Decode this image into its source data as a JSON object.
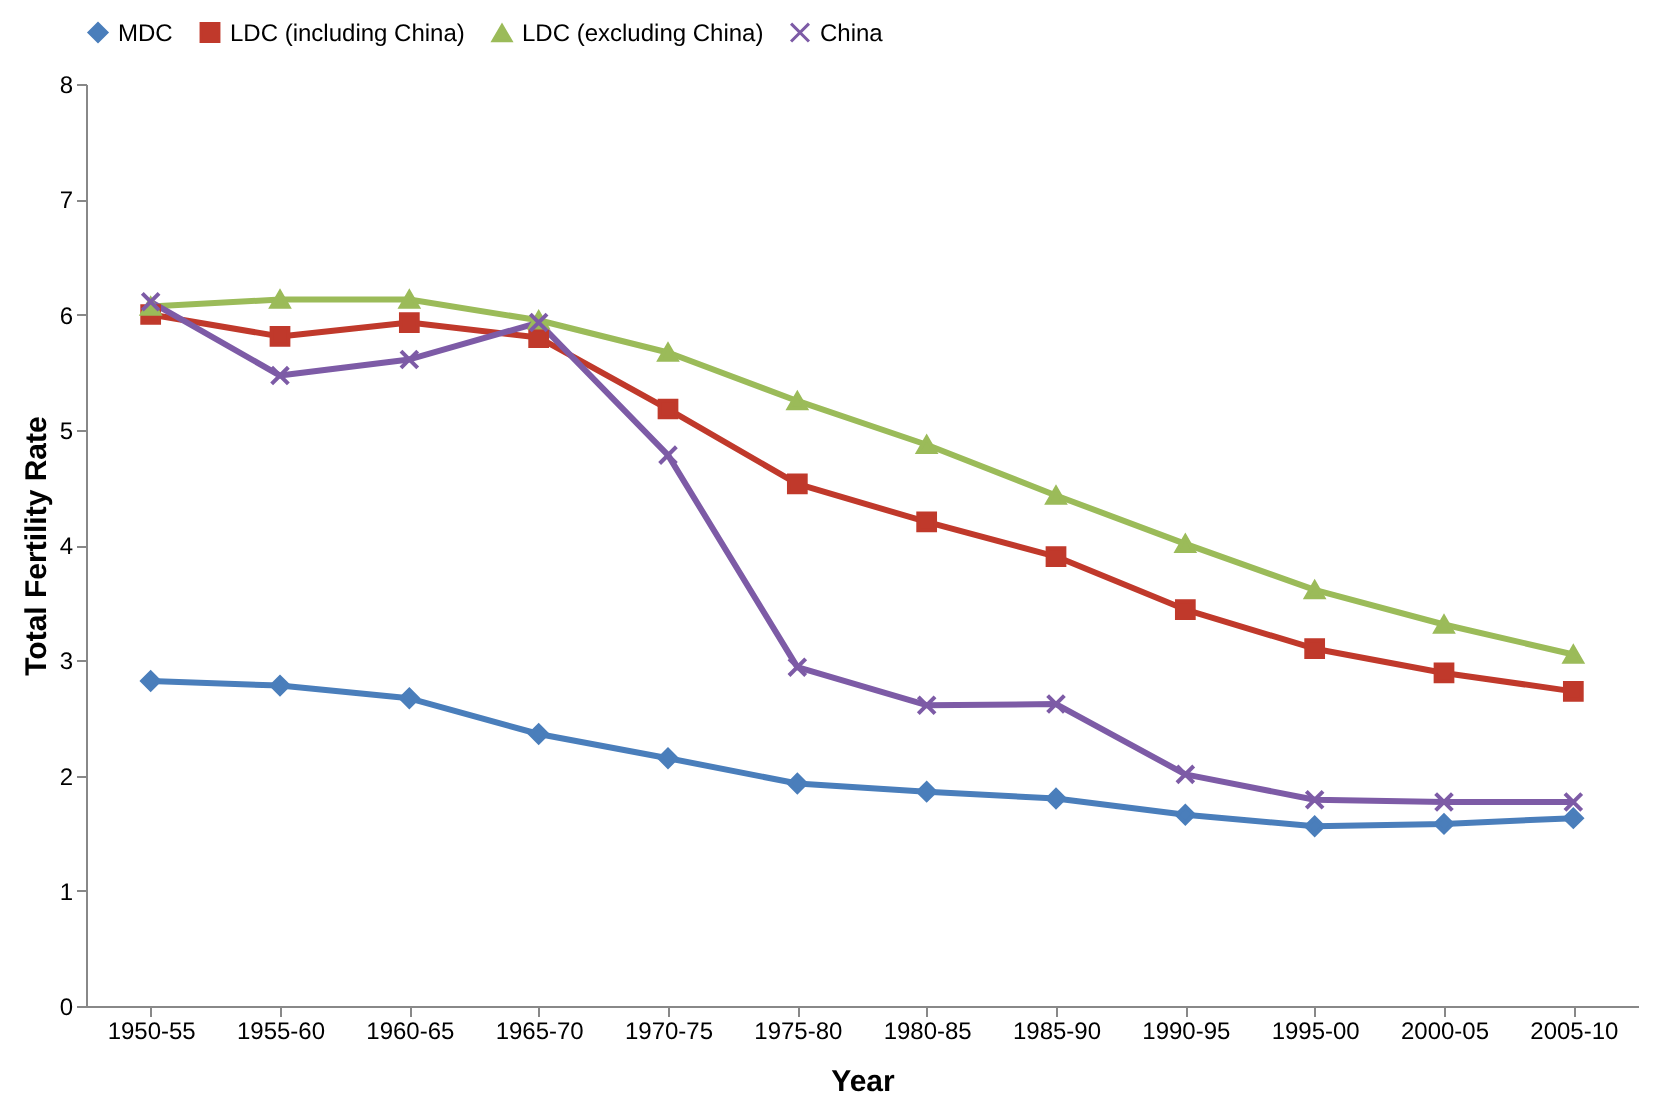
{
  "chart_data": {
    "type": "line",
    "xlabel": "Year",
    "ylabel": "Total Fertility Rate",
    "categories": [
      "1950-55",
      "1955-60",
      "1960-65",
      "1965-70",
      "1970-75",
      "1975-80",
      "1980-85",
      "1985-90",
      "1990-95",
      "1995-00",
      "2000-05",
      "2005-10"
    ],
    "series": [
      {
        "name": "MDC",
        "color": "#4a7ebb",
        "marker": "diamond",
        "values": [
          2.82,
          2.78,
          2.67,
          2.36,
          2.15,
          1.93,
          1.86,
          1.8,
          1.66,
          1.56,
          1.58,
          1.63
        ]
      },
      {
        "name": "LDC (including China)",
        "color": "#c0392b",
        "marker": "square",
        "values": [
          6.0,
          5.81,
          5.93,
          5.8,
          5.18,
          4.53,
          4.2,
          3.9,
          3.44,
          3.1,
          2.89,
          2.73
        ]
      },
      {
        "name": "LDC (excluding China)",
        "color": "#9bbb59",
        "marker": "triangle",
        "values": [
          6.07,
          6.13,
          6.13,
          5.95,
          5.67,
          5.25,
          4.87,
          4.43,
          4.01,
          3.61,
          3.31,
          3.05
        ]
      },
      {
        "name": "China",
        "color": "#7d5ba6",
        "marker": "cross",
        "values": [
          6.11,
          5.47,
          5.61,
          5.93,
          4.78,
          2.94,
          2.61,
          2.62,
          2.01,
          1.79,
          1.77,
          1.77
        ]
      }
    ],
    "ylim": [
      0,
      8
    ],
    "yticks": [
      0,
      1,
      2,
      3,
      4,
      5,
      6,
      7,
      8
    ],
    "grid": false,
    "legend": "top"
  }
}
